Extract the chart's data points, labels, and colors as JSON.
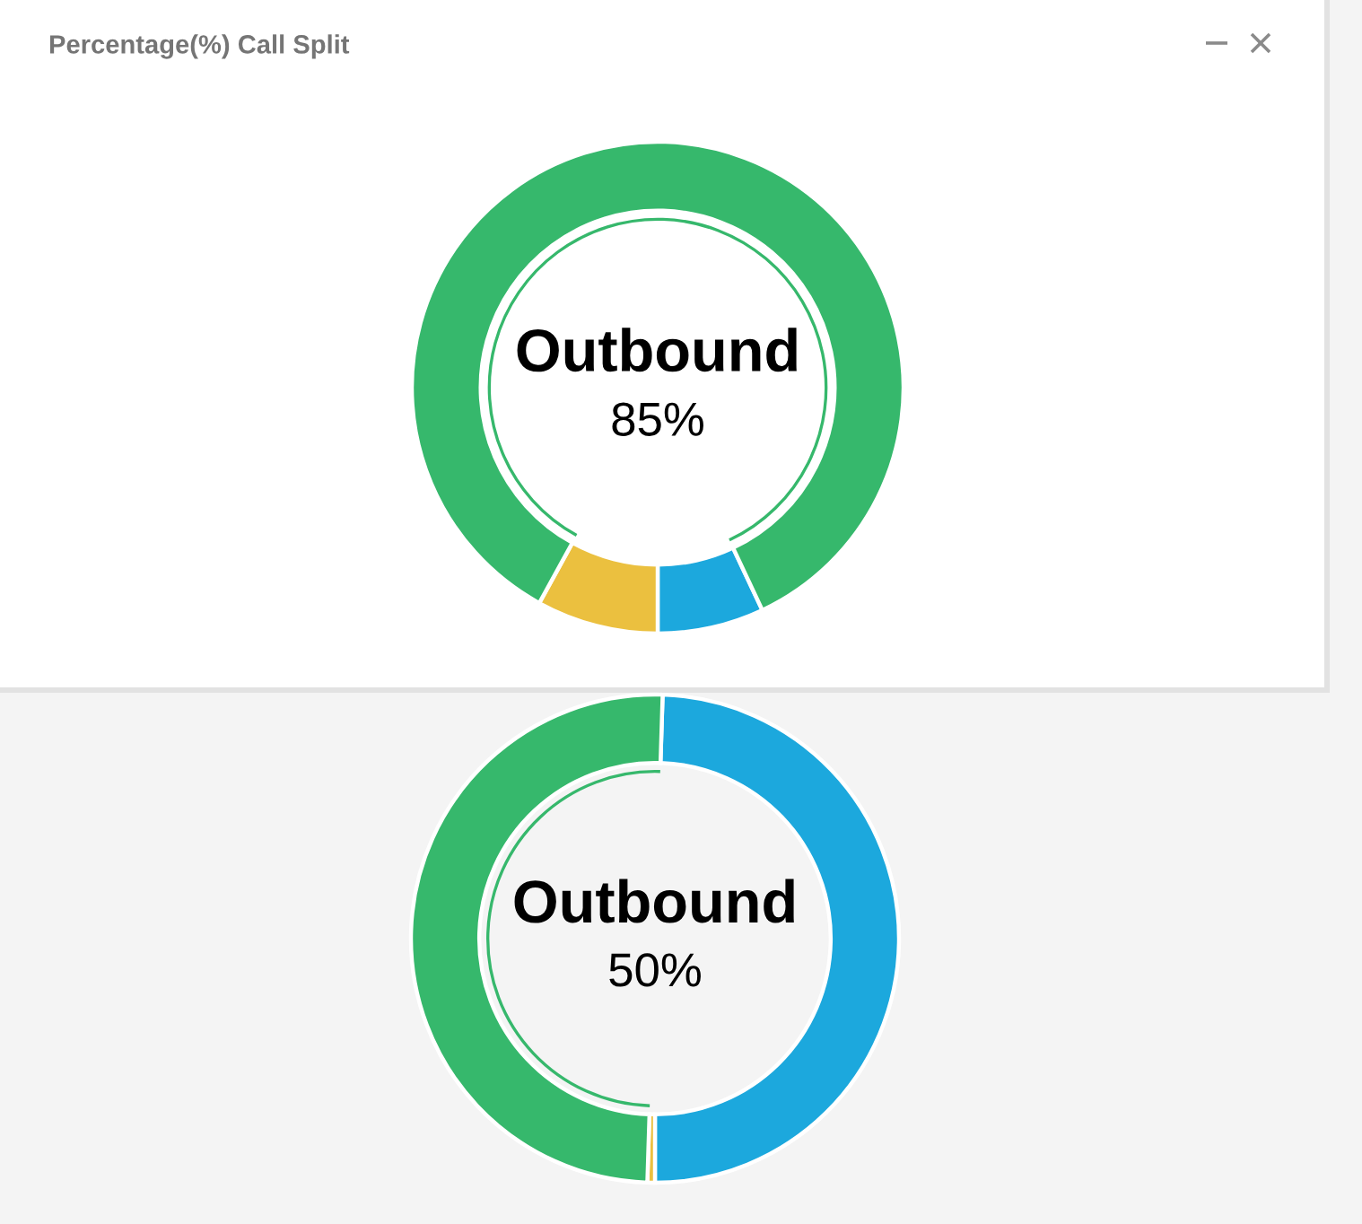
{
  "chart_data": [
    {
      "type": "donut",
      "title": "Percentage(%) Call Split",
      "categories": [
        null,
        null,
        null
      ],
      "values": [
        7,
        8,
        85
      ],
      "colors": [
        "#1ca8dd",
        "#ebc03f",
        "#36b86c"
      ],
      "annotations": [
        "Outbound",
        "85%"
      ]
    },
    {
      "type": "donut",
      "categories": [
        null,
        null,
        null
      ],
      "values": [
        49.5,
        0.5,
        50
      ],
      "colors": [
        "#1ca8dd",
        "#ebc03f",
        "#36b86c"
      ],
      "annotations": [
        "Outbound",
        "50%"
      ]
    }
  ]
}
